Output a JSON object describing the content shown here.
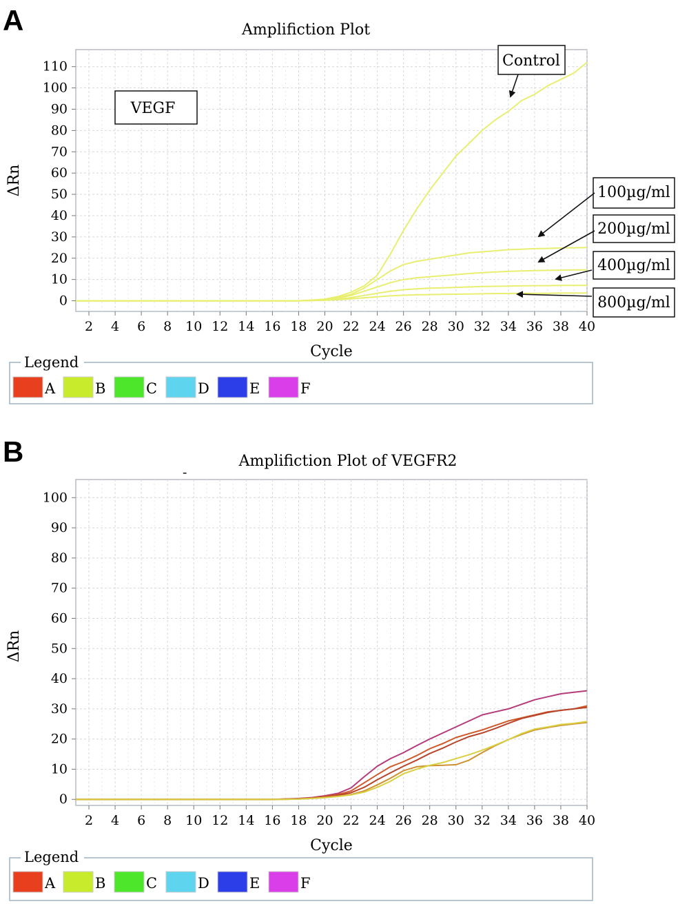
{
  "panels": [
    {
      "letter": "A",
      "title": "Amplifiction Plot",
      "box_label": "VEGF",
      "legend_title": "Legend",
      "legend": [
        {
          "label": "A",
          "color": "#e8401f"
        },
        {
          "label": "B",
          "color": "#c8ec2c"
        },
        {
          "label": "C",
          "color": "#4ee62a"
        },
        {
          "label": "D",
          "color": "#5fd4ee"
        },
        {
          "label": "E",
          "color": "#2c3ee8"
        },
        {
          "label": "F",
          "color": "#d93ee8"
        }
      ]
    },
    {
      "letter": "B",
      "title": "Amplifiction Plot of VEGFR2",
      "stray_mark": "-",
      "legend_title": "Legend",
      "legend": [
        {
          "label": "A",
          "color": "#e8401f"
        },
        {
          "label": "B",
          "color": "#c8ec2c"
        },
        {
          "label": "C",
          "color": "#4ee62a"
        },
        {
          "label": "D",
          "color": "#5fd4ee"
        },
        {
          "label": "E",
          "color": "#2c3ee8"
        },
        {
          "label": "F",
          "color": "#d93ee8"
        }
      ]
    }
  ],
  "chart_data": [
    {
      "type": "line",
      "title": "Amplifiction Plot",
      "xlabel": "Cycle",
      "ylabel": "ΔRn",
      "xlim": [
        1,
        40
      ],
      "ylim": [
        -5,
        118
      ],
      "xticks": [
        2,
        4,
        6,
        8,
        10,
        12,
        14,
        16,
        18,
        20,
        22,
        24,
        26,
        28,
        30,
        32,
        34,
        36,
        38,
        40
      ],
      "yticks": [
        0,
        10,
        20,
        30,
        40,
        50,
        60,
        70,
        80,
        90,
        100,
        110
      ],
      "grid": true,
      "line_color": "#e8ef70",
      "x": [
        1,
        2,
        4,
        6,
        8,
        10,
        12,
        14,
        16,
        18,
        19,
        20,
        21,
        22,
        23,
        24,
        25,
        26,
        27,
        28,
        29,
        30,
        31,
        32,
        33,
        34,
        35,
        36,
        37,
        38,
        39,
        40
      ],
      "series": [
        {
          "values": [
            0,
            0,
            0,
            0,
            0,
            0,
            0,
            0,
            0,
            0,
            0.3,
            0.8,
            2,
            4,
            7,
            12,
            22,
            33,
            43,
            52,
            60,
            68,
            74,
            80,
            85,
            89,
            94,
            97,
            101,
            104,
            107,
            112
          ]
        },
        {
          "values": [
            0,
            0,
            0,
            0,
            0,
            0,
            0,
            0,
            0,
            0,
            0.3,
            0.6,
            1.5,
            3,
            6,
            10,
            14,
            17,
            18.5,
            19.5,
            20.5,
            21.5,
            22.5,
            23,
            23.5,
            24,
            24.2,
            24.5,
            24.6,
            24.8,
            24.9,
            25
          ]
        },
        {
          "values": [
            0,
            0,
            0,
            0,
            0,
            0,
            0,
            0,
            0,
            0,
            0.2,
            0.5,
            1.2,
            2.5,
            4.5,
            6.5,
            8.5,
            10,
            10.8,
            11.3,
            11.8,
            12.3,
            12.8,
            13.2,
            13.5,
            13.8,
            14,
            14.2,
            14.3,
            14.4,
            14.5,
            14.5
          ]
        },
        {
          "values": [
            0,
            0,
            0,
            0,
            0,
            0,
            0,
            0,
            0,
            0,
            0.1,
            0.3,
            0.8,
            1.5,
            2.5,
            3.5,
            4.5,
            5.2,
            5.6,
            5.9,
            6.1,
            6.3,
            6.5,
            6.7,
            6.8,
            6.9,
            7,
            7.1,
            7.1,
            7.2,
            7.2,
            7.2
          ]
        },
        {
          "values": [
            0,
            0,
            0,
            0,
            0,
            0,
            0,
            0,
            0,
            0,
            0.1,
            0.2,
            0.5,
            0.9,
            1.4,
            1.9,
            2.3,
            2.6,
            2.8,
            2.9,
            3,
            3.1,
            3.2,
            3.3,
            3.4,
            3.4,
            3.5,
            3.5,
            3.5,
            3.6,
            3.6,
            3.6
          ]
        }
      ],
      "annotations": [
        {
          "text": "Control",
          "series": 0
        },
        {
          "text": "100µg/ml",
          "series": 1
        },
        {
          "text": "200µg/ml",
          "series": 2
        },
        {
          "text": "400µg/ml",
          "series": 3
        },
        {
          "text": "800µg/ml",
          "series": 4
        }
      ]
    },
    {
      "type": "line",
      "title": "Amplifiction Plot of VEGFR2",
      "xlabel": "Cycle",
      "ylabel": "ΔRn",
      "xlim": [
        1,
        40
      ],
      "ylim": [
        -2,
        106
      ],
      "xticks": [
        2,
        4,
        6,
        8,
        10,
        12,
        14,
        16,
        18,
        20,
        22,
        24,
        26,
        28,
        30,
        32,
        34,
        36,
        38,
        40
      ],
      "yticks": [
        0,
        10,
        20,
        30,
        40,
        50,
        60,
        70,
        80,
        90,
        100
      ],
      "grid": true,
      "x": [
        1,
        2,
        4,
        6,
        8,
        10,
        12,
        14,
        16,
        17,
        18,
        19,
        20,
        21,
        22,
        23,
        24,
        25,
        26,
        27,
        28,
        29,
        30,
        31,
        32,
        33,
        34,
        35,
        36,
        37,
        38,
        39,
        40
      ],
      "series": [
        {
          "color": "#b53a7a",
          "values": [
            0,
            0,
            0,
            0,
            0,
            0,
            0,
            0,
            0,
            0.1,
            0.3,
            0.6,
            1.2,
            2,
            3.8,
            7.5,
            11,
            13.5,
            15.5,
            17.8,
            20,
            22,
            24,
            26,
            28,
            29,
            30,
            31.5,
            33,
            34,
            35,
            35.5,
            36
          ]
        },
        {
          "color": "#d0592a",
          "values": [
            0,
            0,
            0,
            0,
            0,
            0,
            0,
            0,
            0,
            0.1,
            0.2,
            0.5,
            1,
            1.6,
            2.8,
            5.5,
            8.2,
            10.8,
            12.5,
            14.5,
            16.8,
            18.5,
            20.5,
            21.8,
            23,
            24.5,
            26,
            27,
            28,
            29,
            29.5,
            30,
            31
          ]
        },
        {
          "color": "#b8452a",
          "values": [
            0,
            0,
            0,
            0,
            0,
            0,
            0,
            0,
            0,
            0.1,
            0.2,
            0.4,
            0.8,
            1.3,
            2.2,
            4,
            6.5,
            8.8,
            11,
            13,
            15.2,
            17,
            19,
            20.8,
            22,
            23.5,
            25.2,
            26.8,
            27.8,
            28.8,
            29.5,
            30,
            30.5
          ]
        },
        {
          "color": "#cf9030",
          "values": [
            0,
            0,
            0,
            0,
            0,
            0,
            0,
            0,
            0,
            0,
            0.1,
            0.3,
            0.6,
            1,
            1.6,
            2.8,
            4.8,
            7,
            9.5,
            10.8,
            11.2,
            11.3,
            11.5,
            13,
            15.5,
            17.8,
            19.8,
            21.5,
            23,
            23.8,
            24.5,
            25,
            25.5
          ]
        },
        {
          "color": "#d8d040",
          "values": [
            0,
            0,
            0,
            0,
            0,
            0,
            0,
            0,
            0,
            0,
            0.1,
            0.3,
            0.6,
            1,
            1.5,
            2.4,
            4,
            6,
            8.5,
            10,
            11.3,
            12.2,
            13.5,
            14.8,
            16.3,
            18,
            19.8,
            21.8,
            23.3,
            24,
            24.8,
            25.2,
            25.8
          ]
        }
      ]
    }
  ]
}
